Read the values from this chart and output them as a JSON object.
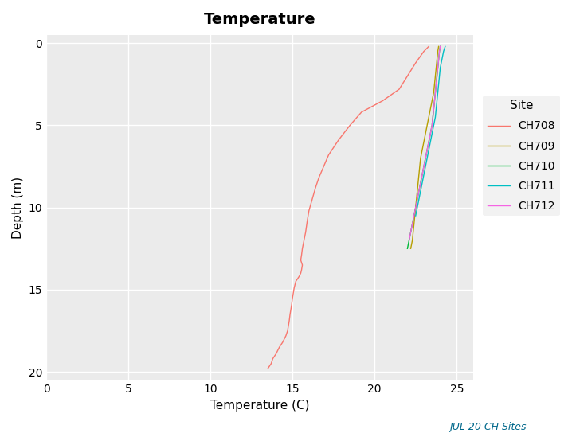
{
  "title": "Temperature",
  "xlabel": "Temperature (C)",
  "ylabel": "Depth (m)",
  "subtitle": "JUL 20 CH Sites",
  "xlim": [
    0,
    26
  ],
  "ylim": [
    20.5,
    -0.5
  ],
  "xticks": [
    0,
    5,
    10,
    15,
    20,
    25
  ],
  "yticks": [
    0,
    5,
    10,
    15,
    20
  ],
  "background_color": "#ebebeb",
  "grid_color": "#ffffff",
  "legend_title": "Site",
  "sites": {
    "CH708": {
      "color": "#f8766d",
      "depth": [
        19.8,
        19.5,
        19.2,
        18.9,
        18.5,
        18.2,
        18.0,
        17.8,
        17.5,
        17.2,
        16.9,
        16.5,
        16.2,
        15.9,
        15.5,
        15.2,
        14.9,
        14.5,
        14.2,
        14.0,
        13.8,
        13.5,
        13.2,
        12.9,
        12.5,
        12.0,
        11.5,
        10.8,
        10.2,
        9.5,
        8.8,
        8.2,
        7.5,
        6.8,
        5.9,
        5.0,
        4.2,
        3.5,
        2.8,
        2.0,
        1.2,
        0.5,
        0.2
      ],
      "temp": [
        13.5,
        13.7,
        13.8,
        14.0,
        14.2,
        14.4,
        14.5,
        14.6,
        14.7,
        14.75,
        14.8,
        14.85,
        14.9,
        14.95,
        15.0,
        15.05,
        15.1,
        15.2,
        15.4,
        15.5,
        15.55,
        15.6,
        15.5,
        15.55,
        15.6,
        15.7,
        15.8,
        15.9,
        16.0,
        16.2,
        16.4,
        16.6,
        16.9,
        17.2,
        17.8,
        18.5,
        19.2,
        20.5,
        21.5,
        22.0,
        22.5,
        23.0,
        23.3
      ]
    },
    "CH709": {
      "color": "#b79f00",
      "depth": [
        12.5,
        12.0,
        11.5,
        11.0,
        10.5,
        10.0,
        9.5,
        9.0,
        8.5,
        8.0,
        7.5,
        7.0,
        6.5,
        6.0,
        5.5,
        5.0,
        4.5,
        4.0,
        3.5,
        3.0,
        2.5,
        2.0,
        1.5,
        1.0,
        0.5,
        0.2
      ],
      "temp": [
        22.2,
        22.3,
        22.35,
        22.4,
        22.45,
        22.5,
        22.55,
        22.6,
        22.65,
        22.7,
        22.75,
        22.8,
        22.9,
        23.0,
        23.1,
        23.2,
        23.3,
        23.4,
        23.5,
        23.6,
        23.65,
        23.7,
        23.75,
        23.8,
        23.85,
        23.9
      ]
    },
    "CH710": {
      "color": "#00ba38",
      "depth": [
        12.5,
        12.0,
        11.5,
        11.0,
        10.5,
        10.0,
        9.5,
        9.0,
        8.5,
        8.0,
        7.5,
        7.0,
        6.5,
        6.0,
        5.5,
        5.0,
        4.5,
        4.0,
        3.5,
        3.0,
        2.5,
        2.0,
        1.5,
        1.0,
        0.5,
        0.2
      ],
      "temp": [
        22.0,
        22.1,
        22.2,
        22.3,
        22.4,
        22.5,
        22.6,
        22.7,
        22.8,
        22.9,
        23.0,
        23.1,
        23.2,
        23.3,
        23.4,
        23.5,
        23.55,
        23.6,
        23.65,
        23.7,
        23.75,
        23.8,
        23.85,
        23.9,
        23.95,
        24.0
      ]
    },
    "CH711": {
      "color": "#00bfc4",
      "depth": [
        10.5,
        10.0,
        9.5,
        9.0,
        8.5,
        8.0,
        7.5,
        7.0,
        6.5,
        6.0,
        5.5,
        5.0,
        4.5,
        4.0,
        3.5,
        3.0,
        2.5,
        2.0,
        1.5,
        1.0,
        0.5,
        0.2
      ],
      "temp": [
        22.5,
        22.6,
        22.7,
        22.8,
        22.9,
        23.0,
        23.1,
        23.2,
        23.3,
        23.4,
        23.5,
        23.6,
        23.7,
        23.75,
        23.8,
        23.85,
        23.9,
        23.95,
        24.0,
        24.1,
        24.2,
        24.3
      ]
    },
    "CH712": {
      "color": "#f564e3",
      "depth": [
        12.0,
        11.5,
        11.0,
        10.5,
        10.0,
        9.5,
        9.0,
        8.5,
        8.0,
        7.5,
        7.0,
        6.5,
        6.0,
        5.5,
        5.0,
        4.5,
        4.0,
        3.5,
        3.0,
        2.5,
        2.0,
        1.5,
        1.0,
        0.5,
        0.2
      ],
      "temp": [
        22.1,
        22.2,
        22.3,
        22.4,
        22.5,
        22.6,
        22.7,
        22.8,
        22.9,
        23.0,
        23.1,
        23.2,
        23.3,
        23.4,
        23.5,
        23.55,
        23.6,
        23.65,
        23.7,
        23.75,
        23.8,
        23.85,
        23.9,
        23.95,
        24.0
      ]
    }
  }
}
